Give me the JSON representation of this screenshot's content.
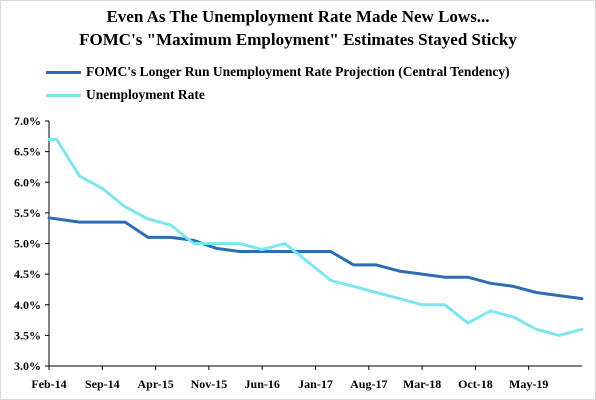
{
  "chart_data": {
    "type": "line",
    "title": "Even As The Unemployment Rate Made New Lows...",
    "subtitle": "FOMC's \"Maximum Employment\" Estimates Stayed Sticky",
    "xlabel": "",
    "ylabel": "",
    "ylim": [
      3.0,
      7.0
    ],
    "y_ticks": [
      "3.0%",
      "3.5%",
      "4.0%",
      "4.5%",
      "5.0%",
      "5.5%",
      "6.0%",
      "6.5%",
      "7.0%"
    ],
    "x_ticks": [
      {
        "label": "Feb-14",
        "x": "2014-02"
      },
      {
        "label": "Sep-14",
        "x": "2014-09"
      },
      {
        "label": "Apr-15",
        "x": "2015-04"
      },
      {
        "label": "Nov-15",
        "x": "2015-11"
      },
      {
        "label": "Jun-16",
        "x": "2016-06"
      },
      {
        "label": "Jan-17",
        "x": "2017-01"
      },
      {
        "label": "Aug-17",
        "x": "2017-08"
      },
      {
        "label": "Mar-18",
        "x": "2018-03"
      },
      {
        "label": "Oct-18",
        "x": "2018-10"
      },
      {
        "label": "May-19",
        "x": "2019-05"
      }
    ],
    "x_range": [
      "2014-02",
      "2019-12"
    ],
    "grid": false,
    "legend_position": "top-left",
    "series": [
      {
        "name": "FOMC's Longer Run Unemployment Rate Projection (Central Tendency)",
        "color": "#2e6db4",
        "points": [
          {
            "x": "2014-02",
            "y": 5.42
          },
          {
            "x": "2014-06",
            "y": 5.35
          },
          {
            "x": "2014-09",
            "y": 5.35
          },
          {
            "x": "2014-12",
            "y": 5.35
          },
          {
            "x": "2015-03",
            "y": 5.1
          },
          {
            "x": "2015-06",
            "y": 5.1
          },
          {
            "x": "2015-09",
            "y": 5.05
          },
          {
            "x": "2015-12",
            "y": 4.92
          },
          {
            "x": "2016-03",
            "y": 4.87
          },
          {
            "x": "2016-06",
            "y": 4.87
          },
          {
            "x": "2016-09",
            "y": 4.87
          },
          {
            "x": "2016-12",
            "y": 4.87
          },
          {
            "x": "2017-03",
            "y": 4.87
          },
          {
            "x": "2017-06",
            "y": 4.65
          },
          {
            "x": "2017-09",
            "y": 4.65
          },
          {
            "x": "2017-12",
            "y": 4.55
          },
          {
            "x": "2018-03",
            "y": 4.5
          },
          {
            "x": "2018-06",
            "y": 4.45
          },
          {
            "x": "2018-09",
            "y": 4.45
          },
          {
            "x": "2018-12",
            "y": 4.35
          },
          {
            "x": "2019-03",
            "y": 4.3
          },
          {
            "x": "2019-06",
            "y": 4.2
          },
          {
            "x": "2019-09",
            "y": 4.15
          },
          {
            "x": "2019-12",
            "y": 4.1
          }
        ]
      },
      {
        "name": "Unemployment Rate",
        "color": "#7fe6f0",
        "points": [
          {
            "x": "2014-02",
            "y": 6.7
          },
          {
            "x": "2014-03",
            "y": 6.7
          },
          {
            "x": "2014-06",
            "y": 6.1
          },
          {
            "x": "2014-09",
            "y": 5.9
          },
          {
            "x": "2014-12",
            "y": 5.6
          },
          {
            "x": "2015-03",
            "y": 5.4
          },
          {
            "x": "2015-06",
            "y": 5.3
          },
          {
            "x": "2015-09",
            "y": 5.0
          },
          {
            "x": "2015-12",
            "y": 5.0
          },
          {
            "x": "2016-03",
            "y": 5.0
          },
          {
            "x": "2016-06",
            "y": 4.9
          },
          {
            "x": "2016-09",
            "y": 5.0
          },
          {
            "x": "2016-12",
            "y": 4.7
          },
          {
            "x": "2017-03",
            "y": 4.4
          },
          {
            "x": "2017-06",
            "y": 4.3
          },
          {
            "x": "2017-09",
            "y": 4.2
          },
          {
            "x": "2017-12",
            "y": 4.1
          },
          {
            "x": "2018-03",
            "y": 4.0
          },
          {
            "x": "2018-06",
            "y": 4.0
          },
          {
            "x": "2018-09",
            "y": 3.7
          },
          {
            "x": "2018-12",
            "y": 3.9
          },
          {
            "x": "2019-03",
            "y": 3.8
          },
          {
            "x": "2019-06",
            "y": 3.6
          },
          {
            "x": "2019-09",
            "y": 3.5
          },
          {
            "x": "2019-12",
            "y": 3.6
          }
        ]
      }
    ]
  }
}
